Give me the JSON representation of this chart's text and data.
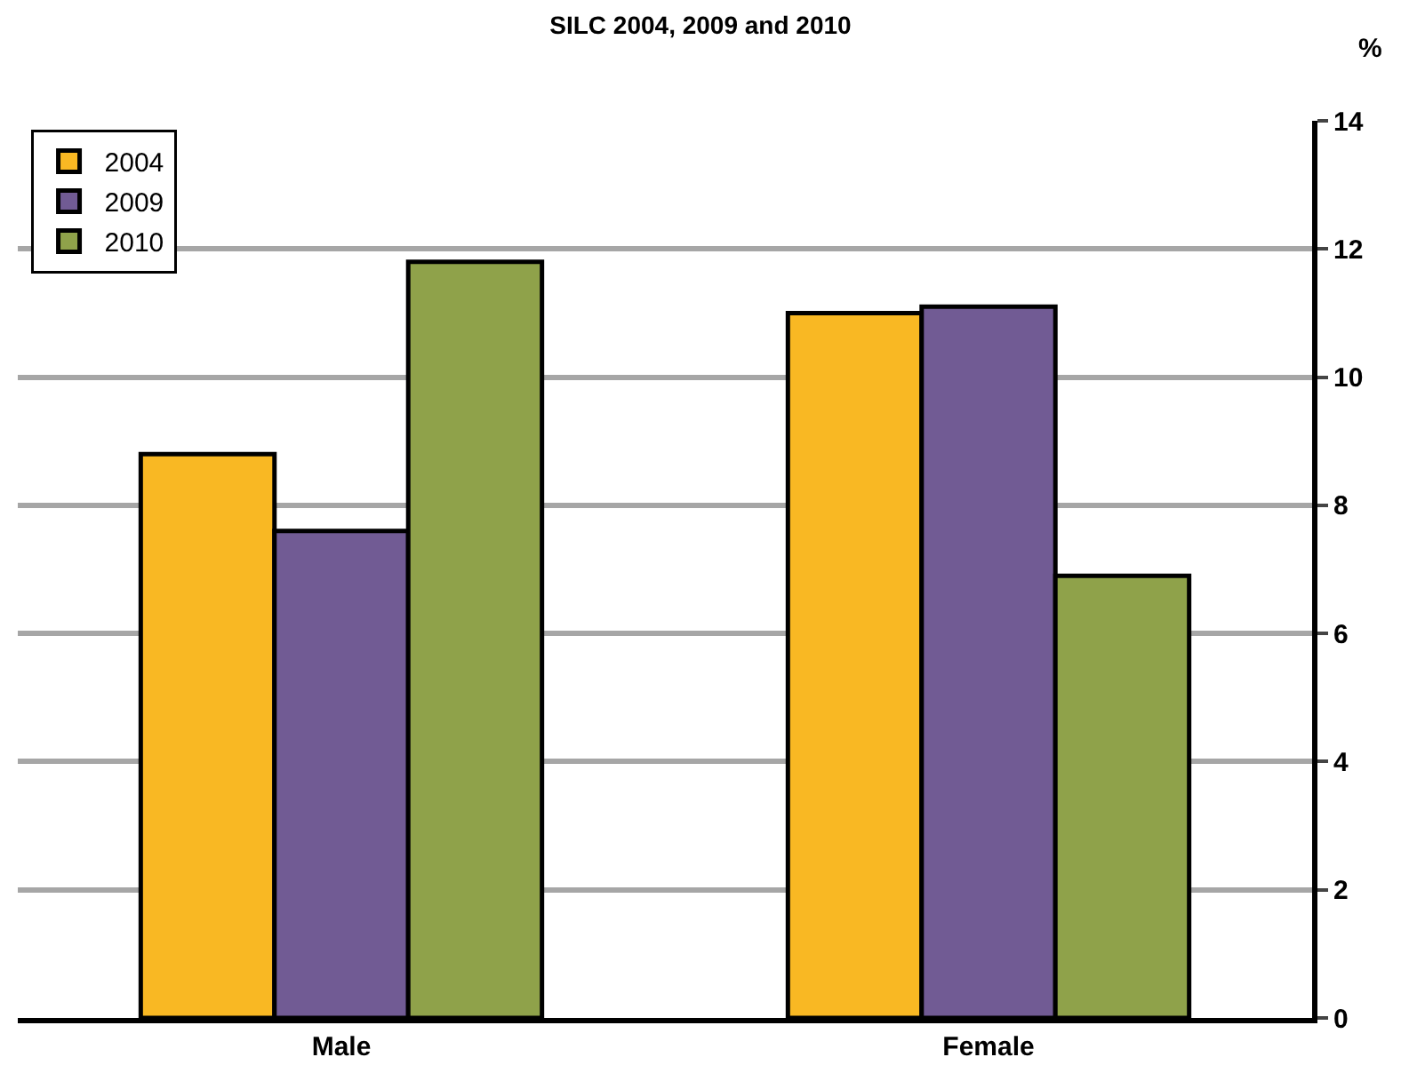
{
  "chart_data": {
    "type": "bar",
    "title": "SILC 2004, 2009 and 2010",
    "ylabel": "%",
    "categories": [
      "Male",
      "Female"
    ],
    "series": [
      {
        "name": "2004",
        "color": "#f9b823",
        "values": [
          8.8,
          11.0
        ]
      },
      {
        "name": "2009",
        "color": "#715b94",
        "values": [
          7.6,
          11.1
        ]
      },
      {
        "name": "2010",
        "color": "#8fa24a",
        "values": [
          11.8,
          6.9
        ]
      }
    ],
    "ylim": [
      0,
      14
    ],
    "yticks": [
      0,
      2,
      4,
      6,
      8,
      10,
      12,
      14
    ],
    "grid": "y",
    "legend": "top left"
  }
}
